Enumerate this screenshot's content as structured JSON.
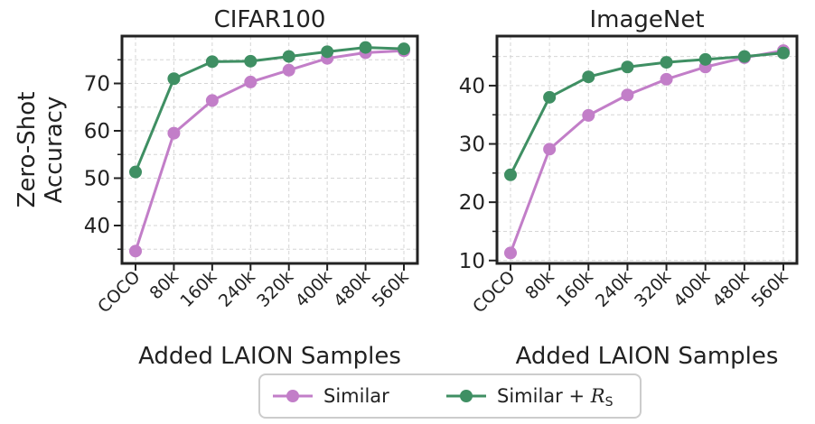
{
  "chart_data": [
    {
      "type": "line",
      "title": "CIFAR100",
      "xlabel": "Added LAION Samples",
      "ylabel": "Zero-Shot\nAccuracy",
      "categories": [
        "COCO",
        "80k",
        "160k",
        "240k",
        "320k",
        "400k",
        "480k",
        "560k"
      ],
      "ylim": [
        32,
        80
      ],
      "yticks": [
        40,
        50,
        60,
        70
      ],
      "yminor": [
        35,
        45,
        55,
        65,
        75
      ],
      "grid": true,
      "series": [
        {
          "name": "Similar",
          "color": "#c27ec8",
          "values": [
            34.6,
            59.5,
            66.4,
            70.3,
            72.8,
            75.3,
            76.5,
            76.9
          ]
        },
        {
          "name": "Similar + R_S",
          "color": "#3f8f63",
          "values": [
            51.3,
            71.0,
            74.6,
            74.7,
            75.7,
            76.7,
            77.6,
            77.3
          ]
        }
      ]
    },
    {
      "type": "line",
      "title": "ImageNet",
      "xlabel": "Added LAION Samples",
      "ylabel": "",
      "categories": [
        "COCO",
        "80k",
        "160k",
        "240k",
        "320k",
        "400k",
        "480k",
        "560k"
      ],
      "ylim": [
        9.5,
        48.5
      ],
      "yticks": [
        10,
        20,
        30,
        40
      ],
      "yminor": [
        15,
        25,
        35,
        45
      ],
      "grid": true,
      "series": [
        {
          "name": "Similar",
          "color": "#c27ec8",
          "values": [
            11.3,
            29.1,
            34.9,
            38.4,
            41.1,
            43.2,
            44.8,
            46.0
          ]
        },
        {
          "name": "Similar + R_S",
          "color": "#3f8f63",
          "values": [
            24.7,
            38.0,
            41.5,
            43.2,
            44.0,
            44.5,
            45.0,
            45.6
          ]
        }
      ]
    }
  ],
  "legend": {
    "position": "bottom-center",
    "items": [
      {
        "label": "Similar",
        "color": "#c27ec8"
      },
      {
        "label_main": "Similar + ",
        "label_script": "R",
        "label_sub": "S",
        "color": "#3f8f63"
      }
    ]
  }
}
